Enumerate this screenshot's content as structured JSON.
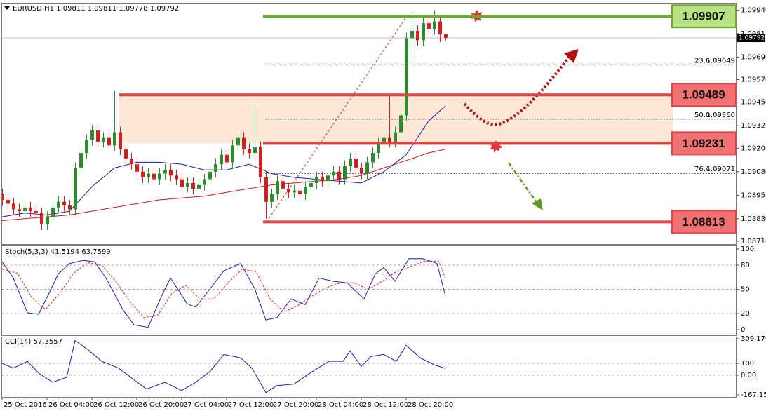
{
  "chart_data": [
    {
      "type": "candlestick",
      "symbol": "EURUSD,H1",
      "categories": [
        "25 Oct 2016",
        null,
        null,
        null,
        null,
        null,
        null,
        null,
        "26 Oct 04:00",
        null,
        null,
        null,
        null,
        null,
        null,
        null,
        "26 Oct 12:00",
        null,
        null,
        null,
        null,
        null,
        null,
        null,
        "26 Oct 20:00",
        null,
        null,
        null,
        null,
        null,
        null,
        null,
        "27 Oct 04:00",
        null,
        null,
        null,
        null,
        null,
        null,
        null,
        "27 Oct 12:00",
        null,
        null,
        null,
        null,
        null,
        null,
        null,
        "27 Oct 20:00",
        null,
        null,
        null,
        null,
        null,
        null,
        null,
        "28 Oct 04:00",
        null,
        null,
        null,
        null,
        null,
        null,
        null,
        "28 Oct 12:00",
        null,
        null,
        null,
        null,
        null,
        null,
        null,
        "28 Oct 20:00",
        null,
        null,
        null,
        null,
        null,
        null,
        null
      ],
      "open": [
        1.0896,
        1.0893,
        1.0891,
        1.0888,
        1.0887,
        1.0889,
        1.0887,
        1.0886,
        1.088,
        1.0884,
        1.0889,
        1.0892,
        1.089,
        1.0888,
        1.091,
        1.0918,
        1.0925,
        1.093,
        1.0924,
        1.0926,
        1.0922,
        1.0929,
        1.092,
        1.0915,
        1.0912,
        1.0908,
        1.0905,
        1.0907,
        1.0904,
        1.0907,
        1.0909,
        1.0906,
        1.0904,
        1.09,
        1.0902,
        1.0899,
        1.0901,
        1.0904,
        1.0908,
        1.0912,
        1.0917,
        1.0913,
        1.0922,
        1.0926,
        1.092,
        1.0918,
        1.0921,
        1.0905,
        1.0892,
        1.0896,
        1.0903,
        1.0899,
        1.0897,
        1.0898,
        1.0896,
        1.09,
        1.0902,
        1.0905,
        1.0903,
        1.0906,
        1.0908,
        1.0904,
        1.0911,
        1.0915,
        1.091,
        1.0907,
        1.0913,
        1.0918,
        1.0923,
        1.0926,
        1.0924,
        1.0929,
        1.0938,
        1.0979,
        1.0983,
        1.0978,
        1.0987,
        1.0984,
        1.0988,
        1.09811
      ],
      "high": [
        1.0899,
        1.0896,
        1.0894,
        1.0891,
        1.0892,
        1.0892,
        1.089,
        1.0889,
        1.0887,
        1.0892,
        1.0895,
        1.0895,
        1.0893,
        1.0913,
        1.0921,
        1.0928,
        1.0933,
        1.0933,
        1.0929,
        1.0929,
        1.0951,
        1.0932,
        1.0923,
        1.0918,
        1.0915,
        1.0911,
        1.091,
        1.091,
        1.091,
        1.0912,
        1.0912,
        1.0909,
        1.0907,
        1.0905,
        1.0905,
        1.0904,
        1.0907,
        1.0911,
        1.0915,
        1.092,
        1.092,
        1.0925,
        1.0929,
        1.0929,
        1.0923,
        1.0944,
        1.0924,
        1.0908,
        1.0899,
        1.0906,
        1.0906,
        1.0902,
        1.0901,
        1.0901,
        1.0903,
        1.0905,
        1.0908,
        1.0908,
        1.0909,
        1.0911,
        1.0911,
        1.0914,
        1.0918,
        1.0918,
        1.0913,
        1.0916,
        1.0921,
        1.0926,
        1.0929,
        1.0949,
        1.0932,
        1.0941,
        1.0982,
        1.0993,
        1.0986,
        1.099,
        1.099,
        1.0994,
        1.0991,
        1.09811
      ],
      "low": [
        1.089,
        1.0888,
        1.0885,
        1.0884,
        1.0884,
        1.0884,
        1.0883,
        1.0877,
        1.0877,
        1.0881,
        1.0886,
        1.0887,
        1.0885,
        1.0885,
        1.0907,
        1.0915,
        1.0922,
        1.0921,
        1.0921,
        1.0919,
        1.0919,
        1.0917,
        1.0912,
        1.0909,
        1.0905,
        1.0902,
        1.0902,
        1.0901,
        1.0901,
        1.0904,
        1.0903,
        1.0901,
        1.0897,
        1.0897,
        1.0896,
        1.0896,
        1.0898,
        1.0901,
        1.0905,
        1.0909,
        1.091,
        1.091,
        1.0919,
        1.0917,
        1.0915,
        1.0915,
        1.0902,
        1.0883,
        1.0889,
        1.0893,
        1.0896,
        1.0894,
        1.0894,
        1.0893,
        1.0893,
        1.0897,
        1.0899,
        1.09,
        1.09,
        1.0903,
        1.0901,
        1.0901,
        1.0908,
        1.0907,
        1.0904,
        1.0904,
        1.091,
        1.0915,
        1.092,
        1.0921,
        1.0921,
        1.0926,
        1.0935,
        1.0965,
        1.0975,
        1.0975,
        1.0981,
        1.0981,
        1.0977,
        1.09778
      ],
      "close": [
        1.0893,
        1.0891,
        1.0888,
        1.0887,
        1.0889,
        1.0887,
        1.0886,
        1.088,
        1.0884,
        1.0889,
        1.0892,
        1.089,
        1.0888,
        1.091,
        1.0918,
        1.0925,
        1.093,
        1.0924,
        1.0926,
        1.0922,
        1.0929,
        1.092,
        1.0915,
        1.0912,
        1.0908,
        1.0905,
        1.0907,
        1.0904,
        1.0907,
        1.0909,
        1.0906,
        1.0904,
        1.09,
        1.0902,
        1.0899,
        1.0901,
        1.0904,
        1.0908,
        1.0912,
        1.0917,
        1.0913,
        1.0922,
        1.0926,
        1.092,
        1.0918,
        1.0921,
        1.0905,
        1.0892,
        1.0896,
        1.0903,
        1.0899,
        1.0897,
        1.0898,
        1.0896,
        1.09,
        1.0902,
        1.0905,
        1.0903,
        1.0906,
        1.0908,
        1.0904,
        1.0911,
        1.0915,
        1.091,
        1.0907,
        1.0913,
        1.0918,
        1.0923,
        1.0926,
        1.0924,
        1.0929,
        1.0938,
        1.0979,
        1.0983,
        1.0978,
        1.0987,
        1.0984,
        1.0988,
        1.0981,
        1.09792
      ],
      "up_color": "#2e8b2e",
      "down_color": "#d02020",
      "ylim": [
        1.08695,
        1.09975
      ],
      "yticks": [
        {
          "value": 1.0994,
          "label": "1.09940"
        },
        1.09815,
        {
          "value": 1.0969,
          "label": "1.09690"
        },
        {
          "value": 1.0957,
          "label": "1.09570"
        },
        {
          "value": 1.0945,
          "label": "1.09450"
        },
        1.09325,
        1.09205,
        {
          "value": 1.0908,
          "label": "1.09080"
        },
        1.08955,
        {
          "value": 1.0883,
          "label": "1.08830"
        },
        {
          "value": 1.0871,
          "label": "1.08710"
        }
      ],
      "moving_averages": [
        {
          "color": "#1a1ab0",
          "x": [
            0,
            4,
            8,
            12,
            16,
            20,
            24,
            28,
            32,
            36,
            40,
            44,
            48,
            52,
            56,
            60,
            64,
            68,
            72,
            76,
            79
          ],
          "values": [
            1.0884,
            1.0886,
            1.0885,
            1.0887,
            1.09,
            1.091,
            1.0913,
            1.0913,
            1.0912,
            1.0909,
            1.0909,
            1.0912,
            1.0907,
            1.0905,
            1.0904,
            1.0903,
            1.0902,
            1.0908,
            1.0917,
            1.0935,
            1.0943
          ]
        },
        {
          "color": "#d01818",
          "x": [
            0,
            4,
            8,
            12,
            16,
            20,
            24,
            28,
            32,
            36,
            40,
            44,
            48,
            52,
            56,
            60,
            64,
            68,
            72,
            76,
            79
          ],
          "values": [
            1.0882,
            1.0883,
            1.0884,
            1.0885,
            1.0887,
            1.0889,
            1.0891,
            1.0893,
            1.0894,
            1.0895,
            1.0897,
            1.0899,
            1.0901,
            1.0902,
            1.0903,
            1.0904,
            1.0906,
            1.091,
            1.0914,
            1.0918,
            1.092
          ]
        }
      ],
      "levels": [
        {
          "value": 1.09907,
          "color": "#6aaa30",
          "box_color": "#b8e184"
        },
        {
          "value": 1.09489,
          "color": "#e04444",
          "box_color": "#f07272"
        },
        {
          "value": 1.09231,
          "color": "#e04444",
          "box_color": "#f07272"
        },
        {
          "value": 1.08813,
          "color": "#e04444",
          "box_color": "#f07272"
        }
      ],
      "zone_color": "#fde3cf",
      "fib": [
        {
          "ratio": 23.6,
          "price": 1.09649
        },
        {
          "ratio": {
            "value": 50,
            "label": "50.0"
          },
          "price": {
            "value": 1.0936,
            "label": "1.09360"
          }
        },
        {
          "ratio": 76.4,
          "price": 1.09071
        }
      ]
    },
    {
      "type": "line",
      "title": "Stoch(5,3,3)",
      "ylim": [
        0,
        100
      ],
      "yticks": [
        100,
        80,
        50,
        20,
        0
      ],
      "grid": true,
      "series": [
        {
          "color": "#1a1ab0",
          "x": [
            0,
            2,
            4.5,
            6.5,
            8.5,
            10,
            12,
            14.5,
            16.5,
            18.5,
            21.5,
            23.5,
            26,
            28.5,
            30,
            33,
            34.5,
            37,
            39.5,
            42.5,
            45,
            47,
            49,
            51.5,
            54,
            56.5,
            59,
            61.5,
            64.5,
            66.5,
            68,
            70,
            72.5,
            75,
            77.5,
            79
          ],
          "values": [
            84,
            64,
            21,
            19,
            47,
            69,
            82,
            86,
            84,
            64,
            25,
            6,
            3,
            43,
            64,
            32,
            28,
            50,
            73,
            82,
            51,
            12,
            15,
            38,
            31,
            64,
            60,
            58,
            38,
            69,
            77,
            60,
            88,
            88,
            82,
            41.5194
          ]
        },
        {
          "color": "#e02020",
          "dashed": true,
          "x": [
            0,
            2.75,
            5.25,
            7.75,
            10.25,
            12.75,
            15.25,
            17.75,
            20.25,
            22.75,
            25.25,
            27.75,
            30.25,
            32.75,
            35.25,
            37.75,
            40.25,
            42.75,
            45.25,
            47.75,
            50.25,
            52.75,
            55.25,
            57.75,
            60.25,
            62.75,
            65.25,
            67.75,
            70.25,
            72.75,
            75.25,
            77.75,
            79
          ],
          "values": [
            75,
            70,
            40,
            25,
            45,
            70,
            83,
            80,
            60,
            35,
            15,
            18,
            45,
            55,
            38,
            38,
            58,
            75,
            72,
            38,
            22,
            30,
            42,
            52,
            58,
            58,
            50,
            60,
            72,
            78,
            85,
            85,
            63.7599
          ]
        }
      ]
    },
    {
      "type": "line",
      "title": "CCI(14)",
      "ylim": [
        -167.152,
        309.1708
      ],
      "yticks": [
        309.1708,
        100,
        {
          "value": 0,
          "label": "0.00"
        },
        -167.152
      ],
      "grid": true,
      "series": [
        {
          "color": "#1a1ab0",
          "x": [
            0,
            2,
            4.5,
            6.5,
            9,
            11.5,
            13,
            15.25,
            17.75,
            20.75,
            23.25,
            25.75,
            29,
            32,
            34.5,
            37,
            39.5,
            42.5,
            44.5,
            47,
            49,
            52,
            55.25,
            58.25,
            60.75,
            62,
            64,
            65.75,
            68,
            70.25,
            72,
            74.5,
            77,
            79
          ],
          "values": [
            100,
            60,
            118,
            18,
            -60,
            -18,
            294,
            218,
            118,
            60,
            -30,
            -118,
            -60,
            -130,
            -60,
            30,
            176,
            147,
            60,
            -147,
            -88,
            -76,
            30,
            118,
            118,
            206,
            76,
            159,
            176,
            118,
            253,
            147,
            88,
            57.3557
          ]
        }
      ]
    }
  ]
}
